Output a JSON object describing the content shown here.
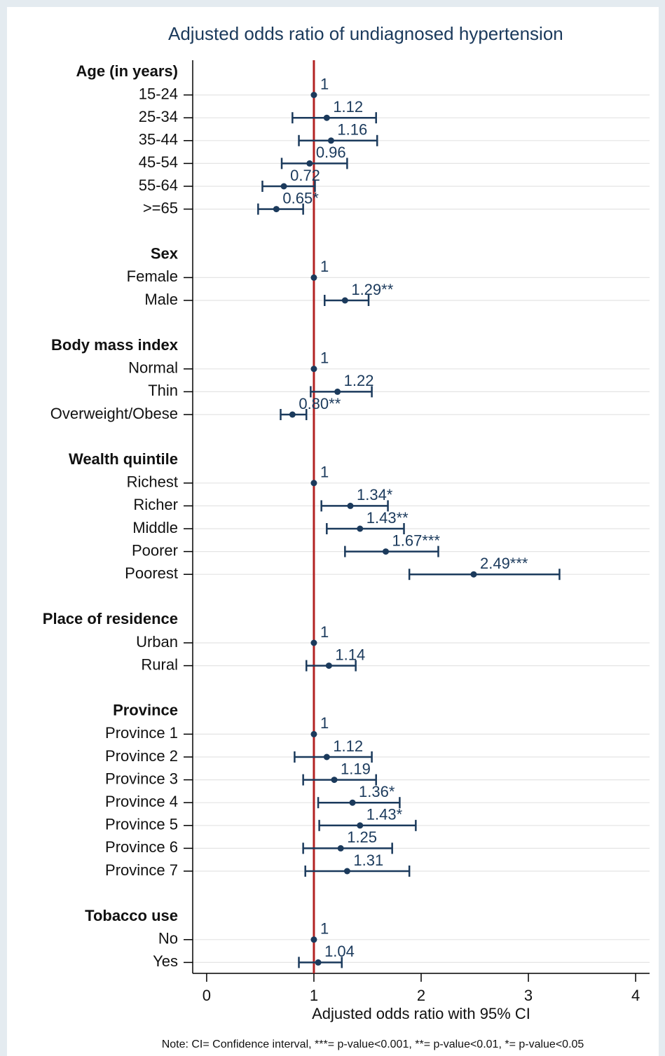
{
  "chart_data": {
    "type": "forest",
    "title": "Adjusted odds ratio of undiagnosed hypertension",
    "x_label": "Adjusted odds ratio with 95% CI",
    "note": "Note: CI= Confidence interval, ***= p-value<0.001, **= p-value<0.01, *= p-value<0.05",
    "xlim": [
      -0.13,
      4.13
    ],
    "xticks": [
      0,
      1,
      2,
      3,
      4
    ],
    "refline": 1,
    "refline_color": "#b22222",
    "color": "#1b3a5c",
    "grid": true,
    "groups": [
      {
        "name": "Age (in years)",
        "categories": [
          "15-24",
          "25-34",
          "35-44",
          "45-54",
          "55-64",
          ">=65"
        ],
        "values": [
          1,
          1.12,
          1.16,
          0.96,
          0.72,
          0.65
        ],
        "value_labels": [
          "1",
          "1.12",
          "1.16",
          "0.96",
          "0.72",
          "0.65*"
        ],
        "lower": [
          null,
          0.8,
          0.86,
          0.7,
          0.52,
          0.48
        ],
        "upper": [
          null,
          1.58,
          1.59,
          1.31,
          1.01,
          0.9
        ]
      },
      {
        "name": "Sex",
        "categories": [
          "Female",
          "Male"
        ],
        "values": [
          1,
          1.29
        ],
        "value_labels": [
          "1",
          "1.29**"
        ],
        "lower": [
          null,
          1.1
        ],
        "upper": [
          null,
          1.51
        ]
      },
      {
        "name": "Body mass index",
        "categories": [
          "Normal",
          "Thin",
          "Overweight/Obese"
        ],
        "values": [
          1,
          1.22,
          0.8
        ],
        "value_labels": [
          "1",
          "1.22",
          "0.80**"
        ],
        "lower": [
          null,
          0.97,
          0.69
        ],
        "upper": [
          null,
          1.54,
          0.93
        ]
      },
      {
        "name": "Wealth quintile",
        "categories": [
          "Richest",
          "Richer",
          "Middle",
          "Poorer",
          "Poorest"
        ],
        "values": [
          1,
          1.34,
          1.43,
          1.67,
          2.49
        ],
        "value_labels": [
          "1",
          "1.34*",
          "1.43**",
          "1.67***",
          "2.49***"
        ],
        "lower": [
          null,
          1.07,
          1.12,
          1.29,
          1.89
        ],
        "upper": [
          null,
          1.69,
          1.84,
          2.16,
          3.29
        ]
      },
      {
        "name": "Place of residence",
        "categories": [
          "Urban",
          "Rural"
        ],
        "values": [
          1,
          1.14
        ],
        "value_labels": [
          "1",
          "1.14"
        ],
        "lower": [
          null,
          0.93
        ],
        "upper": [
          null,
          1.39
        ]
      },
      {
        "name": "Province",
        "categories": [
          "Province 1",
          "Province 2",
          "Province 3",
          "Province 4",
          "Province 5",
          "Province 6",
          "Province 7"
        ],
        "values": [
          1,
          1.12,
          1.19,
          1.36,
          1.43,
          1.25,
          1.31
        ],
        "value_labels": [
          "1",
          "1.12",
          "1.19",
          "1.36*",
          "1.43*",
          "1.25",
          "1.31"
        ],
        "lower": [
          null,
          0.82,
          0.9,
          1.04,
          1.05,
          0.9,
          0.92
        ],
        "upper": [
          null,
          1.54,
          1.58,
          1.8,
          1.95,
          1.73,
          1.89
        ]
      },
      {
        "name": "Tobacco use",
        "categories": [
          "No",
          "Yes"
        ],
        "values": [
          1,
          1.04
        ],
        "value_labels": [
          "1",
          "1.04"
        ],
        "lower": [
          null,
          0.86
        ],
        "upper": [
          null,
          1.26
        ]
      }
    ]
  }
}
